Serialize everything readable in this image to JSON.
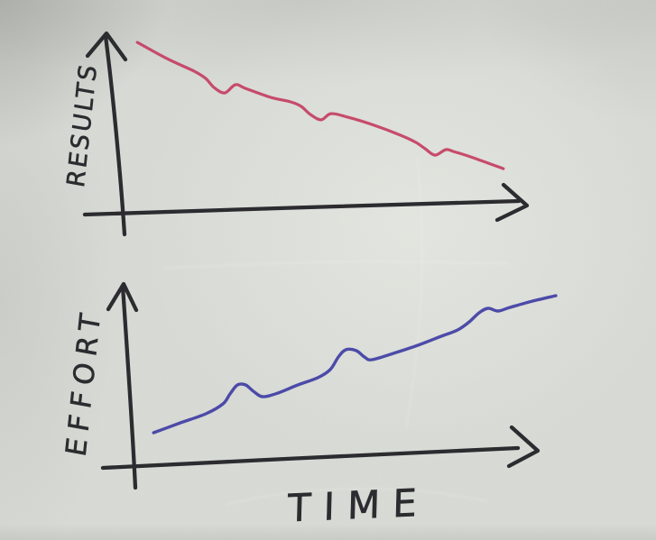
{
  "palette": {
    "paper": "#d6d8d3",
    "ink": "#28282c",
    "results_line": "#c23a5d",
    "effort_line": "#3b3aa2"
  },
  "icons": {
    "y_axis_arrowhead": "up-arrow",
    "x_axis_arrowhead": "right-arrow"
  },
  "chart_data": [
    {
      "id": "results-over-time",
      "type": "line",
      "style": "hand-drawn-sketch",
      "title": "",
      "xlabel": "",
      "ylabel": "RESULTS",
      "trend": "decreasing with periodic small dips",
      "line_color": "#c23a5d",
      "stroke_width": 3.2,
      "axes": "unlabeled, no ticks, arrowed",
      "points_norm": [
        [
          0.039,
          0.963
        ],
        [
          0.114,
          0.868
        ],
        [
          0.182,
          0.795
        ],
        [
          0.211,
          0.753
        ],
        [
          0.232,
          0.7
        ],
        [
          0.259,
          0.668
        ],
        [
          0.286,
          0.716
        ],
        [
          0.311,
          0.695
        ],
        [
          0.375,
          0.642
        ],
        [
          0.425,
          0.616
        ],
        [
          0.452,
          0.589
        ],
        [
          0.475,
          0.542
        ],
        [
          0.502,
          0.511
        ],
        [
          0.527,
          0.547
        ],
        [
          0.57,
          0.526
        ],
        [
          0.636,
          0.479
        ],
        [
          0.702,
          0.421
        ],
        [
          0.741,
          0.379
        ],
        [
          0.764,
          0.342
        ],
        [
          0.789,
          0.305
        ],
        [
          0.816,
          0.337
        ],
        [
          0.836,
          0.326
        ],
        [
          0.886,
          0.289
        ],
        [
          0.961,
          0.226
        ]
      ]
    },
    {
      "id": "effort-over-time",
      "type": "line",
      "style": "hand-drawn-sketch",
      "title": "",
      "xlabel": "TIME",
      "ylabel": "EFFORT",
      "trend": "increasing with periodic small bumps",
      "line_color": "#3b3aa2",
      "stroke_width": 3.4,
      "axes": "unlabeled, no ticks, arrowed",
      "points_norm": [
        [
          0.063,
          0.175
        ],
        [
          0.132,
          0.23
        ],
        [
          0.197,
          0.28
        ],
        [
          0.241,
          0.335
        ],
        [
          0.259,
          0.39
        ],
        [
          0.278,
          0.44
        ],
        [
          0.299,
          0.44
        ],
        [
          0.319,
          0.405
        ],
        [
          0.343,
          0.375
        ],
        [
          0.382,
          0.395
        ],
        [
          0.433,
          0.44
        ],
        [
          0.484,
          0.48
        ],
        [
          0.516,
          0.525
        ],
        [
          0.537,
          0.595
        ],
        [
          0.556,
          0.635
        ],
        [
          0.583,
          0.63
        ],
        [
          0.604,
          0.595
        ],
        [
          0.623,
          0.58
        ],
        [
          0.678,
          0.615
        ],
        [
          0.741,
          0.66
        ],
        [
          0.801,
          0.71
        ],
        [
          0.843,
          0.745
        ],
        [
          0.873,
          0.79
        ],
        [
          0.898,
          0.84
        ],
        [
          0.921,
          0.865
        ],
        [
          0.947,
          0.85
        ],
        [
          0.977,
          0.87
        ],
        [
          1.035,
          0.905
        ],
        [
          1.095,
          0.935
        ]
      ]
    }
  ]
}
